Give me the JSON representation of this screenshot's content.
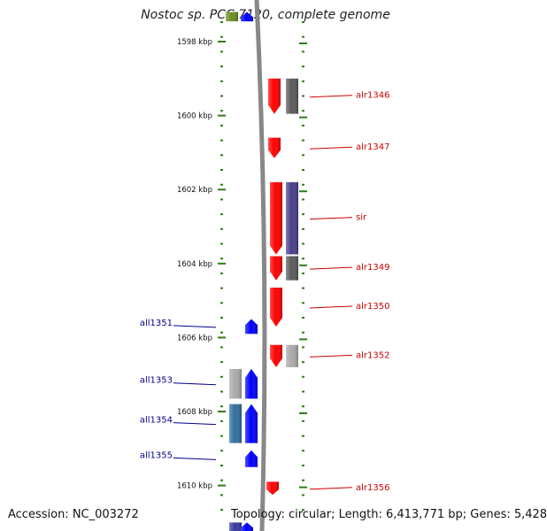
{
  "title": "Nostoc sp. PCC 7120, complete genome",
  "accession": "Accession: NC_003272",
  "topology": "Topology: circular; Length: 6,413,771 bp; Genes: 5,428",
  "colors": {
    "axis_tick": "#2e7d1a",
    "forward_gene": "#ff0000",
    "reverse_gene": "#0000ff",
    "forward_label": "#cc0000",
    "reverse_label": "#00008b",
    "backbone": "#888888"
  },
  "kbp_ticks": [
    {
      "label": "1598 kbp",
      "kbp": 1598
    },
    {
      "label": "1600 kbp",
      "kbp": 1600
    },
    {
      "label": "1602 kbp",
      "kbp": 1602
    },
    {
      "label": "1604 kbp",
      "kbp": 1604
    },
    {
      "label": "1606 kbp",
      "kbp": 1606
    },
    {
      "label": "1608 kbp",
      "kbp": 1608
    },
    {
      "label": "1610 kbp",
      "kbp": 1610
    }
  ],
  "forward_genes": [
    {
      "name": "alr1346",
      "start_kbp": 1599.0,
      "end_kbp": 1600.0,
      "has_label": true
    },
    {
      "name": "alr1347",
      "start_kbp": 1600.6,
      "end_kbp": 1601.2,
      "has_label": true
    },
    {
      "name": "sir",
      "start_kbp": 1601.8,
      "end_kbp": 1603.8,
      "has_label": true
    },
    {
      "name": "alr1349",
      "start_kbp": 1603.8,
      "end_kbp": 1604.5,
      "has_label": true
    },
    {
      "name": "alr1350",
      "start_kbp": 1604.65,
      "end_kbp": 1605.75,
      "has_label": true
    },
    {
      "name": "alr1352",
      "start_kbp": 1606.2,
      "end_kbp": 1606.85,
      "has_label": true
    },
    {
      "name": "alr1356",
      "start_kbp": 1609.9,
      "end_kbp": 1610.3,
      "has_label": true
    }
  ],
  "reverse_genes": [
    {
      "name": "all1351",
      "start_kbp": 1605.5,
      "end_kbp": 1605.95,
      "has_label": true
    },
    {
      "name": "all1353",
      "start_kbp": 1606.85,
      "end_kbp": 1607.7,
      "has_label": true
    },
    {
      "name": "all1354",
      "start_kbp": 1607.8,
      "end_kbp": 1608.9,
      "has_label": true
    },
    {
      "name": "all1355",
      "start_kbp": 1609.05,
      "end_kbp": 1609.55,
      "has_label": true
    },
    {
      "name": "",
      "start_kbp": 1597.2,
      "end_kbp": 1597.5,
      "has_label": false
    },
    {
      "name": "",
      "start_kbp": 1611.0,
      "end_kbp": 1611.3,
      "has_label": false
    }
  ],
  "forward_features": [
    {
      "start_kbp": 1599.0,
      "end_kbp": 1600.0,
      "color": "#5a5a5a"
    },
    {
      "start_kbp": 1601.8,
      "end_kbp": 1603.8,
      "color": "#4a3f8c"
    },
    {
      "start_kbp": 1603.8,
      "end_kbp": 1604.5,
      "color": "#5a5a5a"
    },
    {
      "start_kbp": 1606.2,
      "end_kbp": 1606.85,
      "color": "#aaaaaa"
    }
  ],
  "reverse_features": [
    {
      "start_kbp": 1597.2,
      "end_kbp": 1597.5,
      "color": "#6b8e23"
    },
    {
      "start_kbp": 1606.85,
      "end_kbp": 1607.7,
      "color": "#aaaaaa"
    },
    {
      "start_kbp": 1607.8,
      "end_kbp": 1608.9,
      "color": "#2f6f9f"
    },
    {
      "start_kbp": 1611.0,
      "end_kbp": 1611.3,
      "color": "#3a3aa0"
    }
  ]
}
